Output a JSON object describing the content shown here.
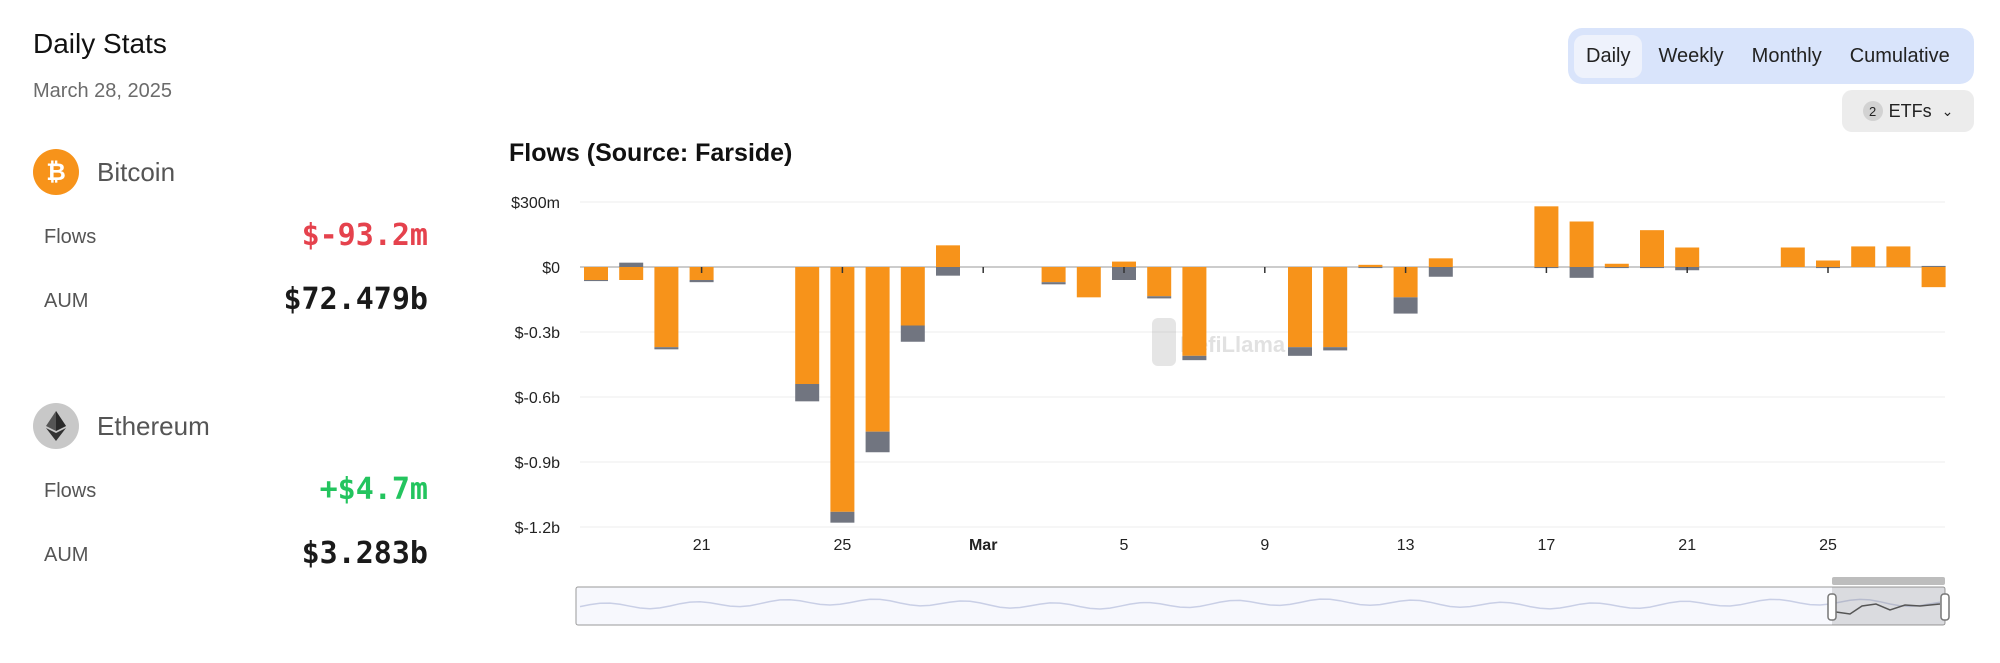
{
  "header": {
    "title": "Daily Stats",
    "date": "March 28, 2025"
  },
  "assets": [
    {
      "name": "Bitcoin",
      "icon": "bitcoin-icon",
      "flows_label": "Flows",
      "flows": "$-93.2m",
      "aum_label": "AUM",
      "aum": "$72.479b"
    },
    {
      "name": "Ethereum",
      "icon": "ethereum-icon",
      "flows_label": "Flows",
      "flows": "+$4.7m",
      "aum_label": "AUM",
      "aum": "$3.283b"
    }
  ],
  "tabs": [
    "Daily",
    "Weekly",
    "Monthly",
    "Cumulative"
  ],
  "active_tab": "Daily",
  "etf_filter": {
    "count": "2",
    "label": "ETFs"
  },
  "watermark": "DefiLlama",
  "colors": {
    "bitcoin": "#f7931a",
    "ethereum": "#717580",
    "negative": "#e5424d",
    "positive": "#23c45e",
    "tabs_bg": "#d9e4fb"
  },
  "chart_data": {
    "type": "bar",
    "stacked": true,
    "title": "Flows (Source: Farside)",
    "y_tick_labels": [
      "$300m",
      "$0",
      "$-0.3b",
      "$-0.6b",
      "$-0.9b",
      "$-1.2b"
    ],
    "y_ticks": [
      300,
      0,
      -300,
      -600,
      -900,
      -1200
    ],
    "ylim": [
      -1200,
      300
    ],
    "x_tick_labels": [
      "21",
      "25",
      "Mar",
      "5",
      "9",
      "13",
      "17",
      "21",
      "25"
    ],
    "x_ticks": [
      "2025-02-21",
      "2025-02-25",
      "2025-03-01",
      "2025-03-05",
      "2025-03-09",
      "2025-03-13",
      "2025-03-17",
      "2025-03-21",
      "2025-03-25"
    ],
    "x": [
      "2025-02-18",
      "2025-02-19",
      "2025-02-20",
      "2025-02-21",
      "2025-02-22",
      "2025-02-23",
      "2025-02-24",
      "2025-02-25",
      "2025-02-26",
      "2025-02-27",
      "2025-02-28",
      "2025-03-01",
      "2025-03-02",
      "2025-03-03",
      "2025-03-04",
      "2025-03-05",
      "2025-03-06",
      "2025-03-07",
      "2025-03-08",
      "2025-03-09",
      "2025-03-10",
      "2025-03-11",
      "2025-03-12",
      "2025-03-13",
      "2025-03-14",
      "2025-03-15",
      "2025-03-16",
      "2025-03-17",
      "2025-03-18",
      "2025-03-19",
      "2025-03-20",
      "2025-03-21",
      "2025-03-22",
      "2025-03-23",
      "2025-03-24",
      "2025-03-25",
      "2025-03-26",
      "2025-03-27",
      "2025-03-28"
    ],
    "series": [
      {
        "name": "Bitcoin",
        "color": "#f7931a",
        "values": [
          -60,
          -60,
          -370,
          -60,
          0,
          0,
          -540,
          -1130,
          -760,
          -270,
          100,
          0,
          0,
          -70,
          -140,
          25,
          -135,
          -410,
          0,
          0,
          -370,
          -370,
          10,
          -140,
          40,
          0,
          0,
          280,
          210,
          15,
          170,
          90,
          0,
          0,
          90,
          30,
          95,
          95,
          -93
        ]
      },
      {
        "name": "Ethereum",
        "color": "#717580",
        "values": [
          -5,
          20,
          -10,
          -10,
          0,
          0,
          -80,
          -50,
          -95,
          -75,
          -40,
          0,
          0,
          -10,
          0,
          -60,
          -10,
          -20,
          0,
          0,
          -40,
          -15,
          -5,
          -75,
          -45,
          0,
          0,
          -5,
          -50,
          -5,
          -5,
          -15,
          0,
          0,
          0,
          -5,
          0,
          0,
          5
        ]
      }
    ]
  }
}
